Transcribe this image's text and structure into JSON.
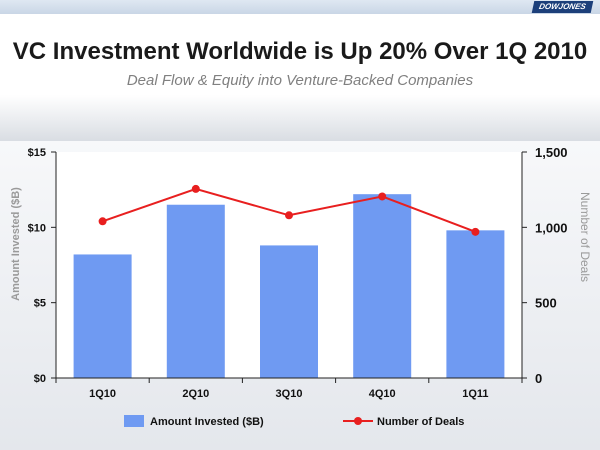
{
  "header": {
    "logo_text": "DOWJONES",
    "title": "VC Investment Worldwide is Up 20% Over 1Q 2010",
    "subtitle": "Deal Flow & Equity into Venture-Backed Companies"
  },
  "chart_data": {
    "type": "bar",
    "categories": [
      "1Q10",
      "2Q10",
      "3Q10",
      "4Q10",
      "1Q11"
    ],
    "series": [
      {
        "name": "Amount Invested ($B)",
        "type": "bar",
        "axis": "left",
        "color": "#6f9af2",
        "values": [
          8.2,
          11.5,
          8.8,
          12.2,
          9.8
        ]
      },
      {
        "name": "Number of Deals",
        "type": "line",
        "axis": "right",
        "color": "#e81f1f",
        "values": [
          1040,
          1255,
          1080,
          1205,
          970
        ]
      }
    ],
    "ylabel": "Amount Invested ($B)",
    "y2label": "Number of Deals",
    "ylim": [
      0,
      15
    ],
    "y2lim": [
      0,
      1500
    ],
    "yticks": [
      "$0",
      "$5",
      "$10",
      "$15"
    ],
    "y2ticks": [
      "0",
      "500",
      "1,000",
      "1,500"
    ],
    "grid": false,
    "legend_position": "bottom"
  }
}
